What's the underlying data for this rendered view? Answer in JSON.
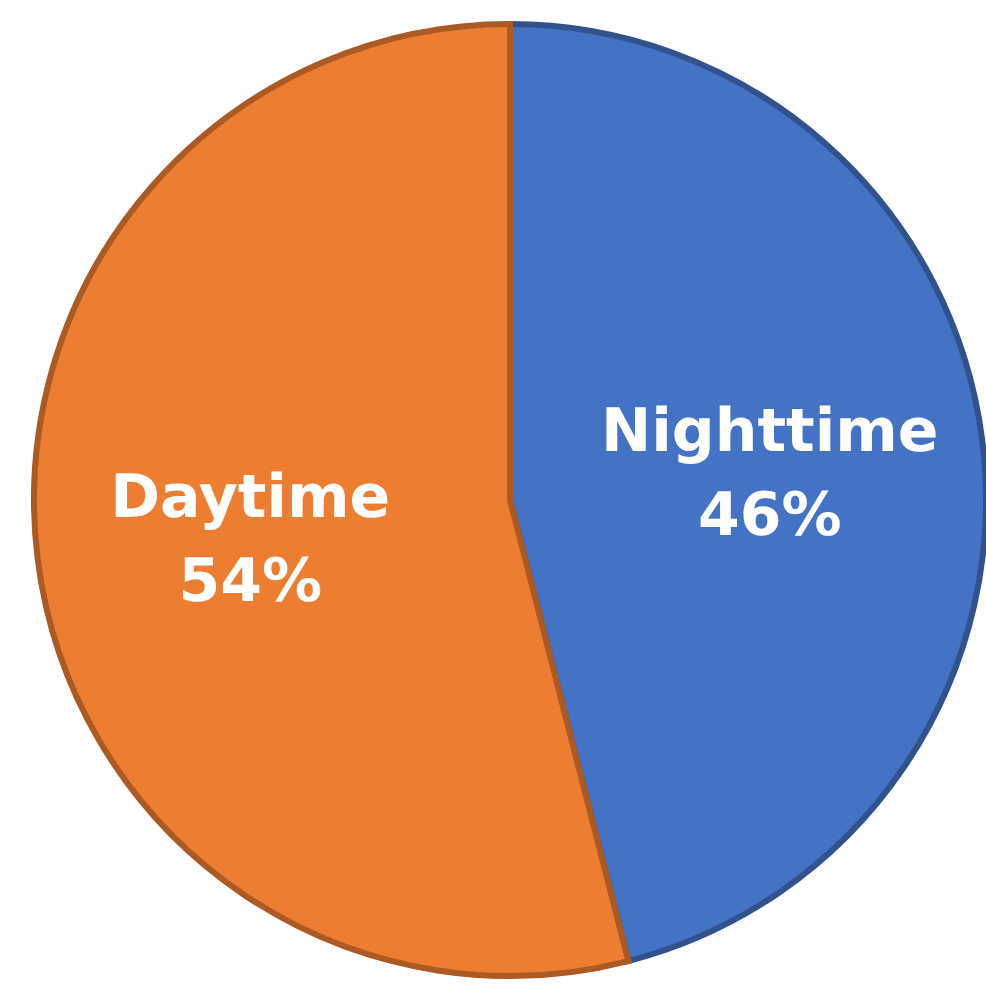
{
  "chart_data": {
    "type": "pie",
    "categories": [
      "Nighttime",
      "Daytime"
    ],
    "values": [
      46,
      54
    ],
    "colors": [
      "#4472c4",
      "#ed7d31"
    ],
    "value_labels": [
      "46%",
      "54%"
    ]
  }
}
